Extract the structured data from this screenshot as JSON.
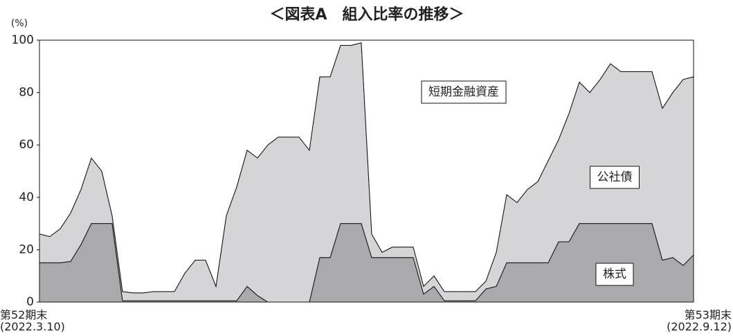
{
  "chart_data": {
    "type": "stacked-area",
    "title": "＜図表A　組入比率の推移＞",
    "y_unit": "(%)",
    "categories": [
      "第52期末\n(2022.3.10)",
      null,
      null,
      null,
      null,
      null,
      null,
      null,
      null,
      null,
      null,
      null,
      null,
      null,
      null,
      null,
      null,
      null,
      null,
      null,
      null,
      null,
      null,
      null,
      null,
      null,
      null,
      null,
      null,
      null,
      null,
      null,
      null,
      null,
      null,
      null,
      null,
      null,
      null,
      null,
      null,
      null,
      null,
      null,
      null,
      null,
      null,
      null,
      null,
      null,
      null,
      null,
      null,
      null,
      null,
      null,
      null,
      null,
      null,
      null,
      null,
      null,
      null,
      "第53期末\n(2022.9.12)"
    ],
    "series": [
      {
        "name": "株式",
        "color": "#aaaaac",
        "values": [
          15,
          15,
          15,
          15.5,
          22,
          30,
          30,
          30,
          0.5,
          0.5,
          0.5,
          0.5,
          0.5,
          0.5,
          0.5,
          0.5,
          0.5,
          0.5,
          0.5,
          0.5,
          6,
          2.5,
          0,
          0,
          0,
          0,
          0,
          17,
          17,
          30,
          30,
          30,
          17,
          17,
          17,
          17,
          17,
          3,
          6,
          0.5,
          0.5,
          0.5,
          0.5,
          5,
          6,
          15,
          15,
          15,
          15,
          15,
          23,
          23,
          30,
          30,
          30,
          30,
          30,
          30,
          30,
          30,
          16,
          17,
          14,
          18
        ]
      },
      {
        "name": "公社債",
        "color": "#d5d5d7",
        "values": [
          11,
          10,
          13,
          18.5,
          21,
          25,
          20,
          3,
          3.5,
          3,
          3,
          3.5,
          3.5,
          3.5,
          10.5,
          15.5,
          15.5,
          5.5,
          32.5,
          43.5,
          52,
          52.5,
          60,
          63,
          63,
          63,
          58,
          69,
          69,
          68,
          68,
          69,
          9,
          2,
          4,
          4,
          4,
          3,
          4,
          3.5,
          3.5,
          3.5,
          3.5,
          3,
          13,
          26,
          23,
          28,
          31,
          39,
          39,
          49,
          54,
          50,
          55,
          61,
          58,
          58,
          58,
          58,
          58,
          63,
          71,
          68
        ]
      },
      {
        "name": "短期金融資産",
        "color": "#ffffff",
        "values": [
          74,
          75,
          72,
          66,
          57,
          45,
          50,
          67,
          96,
          96.5,
          96.5,
          96,
          96,
          96,
          89,
          84,
          84,
          94,
          67,
          56,
          42,
          45,
          40,
          37,
          37,
          37,
          42,
          14,
          14,
          2,
          2,
          1,
          74,
          81,
          79,
          79,
          79,
          94,
          90,
          96,
          96,
          96,
          96,
          92,
          81,
          59,
          62,
          57,
          54,
          46,
          38,
          28,
          16,
          20,
          15,
          9,
          12,
          12,
          12,
          12,
          26,
          20,
          15,
          14
        ]
      }
    ],
    "ylim": [
      0,
      100
    ],
    "yticks": [
      0,
      20,
      40,
      60,
      80,
      100
    ],
    "grid": false
  }
}
